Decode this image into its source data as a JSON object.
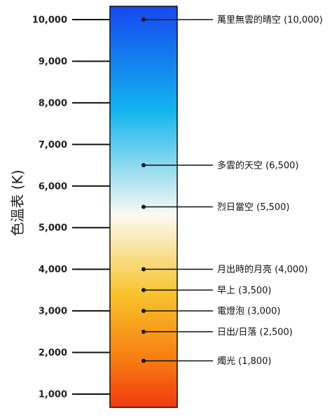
{
  "axis": {
    "title": "色溫表 (K)",
    "ticks": [
      {
        "value": 10000,
        "label": "10,000"
      },
      {
        "value": 9000,
        "label": "9,000"
      },
      {
        "value": 8000,
        "label": "8,000"
      },
      {
        "value": 7000,
        "label": "7,000"
      },
      {
        "value": 6000,
        "label": "6,000"
      },
      {
        "value": 5000,
        "label": "5,000"
      },
      {
        "value": 4000,
        "label": "4,000"
      },
      {
        "value": 3000,
        "label": "3,000"
      },
      {
        "value": 2000,
        "label": "2,000"
      },
      {
        "value": 1000,
        "label": "1,000"
      }
    ]
  },
  "gradient_colors": {
    "blue": "#1748ee",
    "sky": "#12b4ee",
    "white": "#fbfbf2",
    "yellow": "#f8c22a",
    "orange": "#f77d12",
    "red": "#f23a10"
  },
  "callouts": [
    {
      "kelvin": 10000,
      "label": "萬里無雲的晴空 (10,000)"
    },
    {
      "kelvin": 6500,
      "label": "多雲的天空 (6,500)"
    },
    {
      "kelvin": 5500,
      "label": "烈日當空 (5,500)"
    },
    {
      "kelvin": 4000,
      "label": "月出時的月亮 (4,000)"
    },
    {
      "kelvin": 3500,
      "label": "早上 (3,500)"
    },
    {
      "kelvin": 3000,
      "label": "電燈泡 (3,000)"
    },
    {
      "kelvin": 2500,
      "label": "日出/日落 (2,500)"
    },
    {
      "kelvin": 1800,
      "label": "燭光 (1,800)"
    }
  ]
}
